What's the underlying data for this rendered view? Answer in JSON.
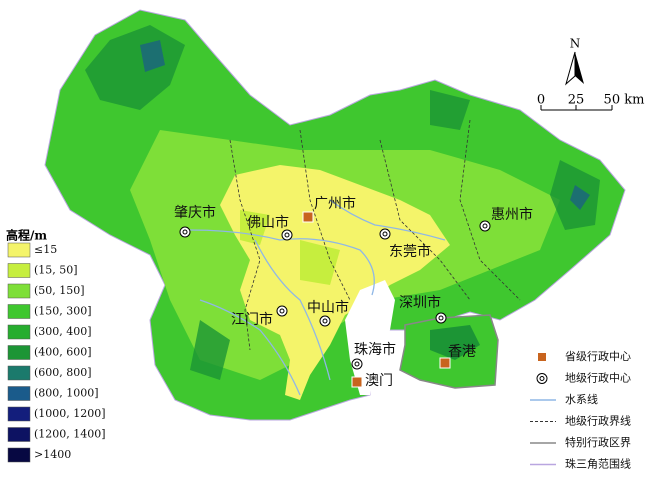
{
  "north_arrow": "N",
  "scale_bar": {
    "labels": [
      "0",
      "25",
      "50 km"
    ]
  },
  "cities": [
    {
      "label": "肇庆市",
      "level": "prefecture"
    },
    {
      "label": "佛山市",
      "level": "prefecture"
    },
    {
      "label": "广州市",
      "level": "province"
    },
    {
      "label": "惠州市",
      "level": "prefecture"
    },
    {
      "label": "东莞市",
      "level": "prefecture"
    },
    {
      "label": "江门市",
      "level": "prefecture"
    },
    {
      "label": "中山市",
      "level": "prefecture"
    },
    {
      "label": "深圳市",
      "level": "prefecture"
    },
    {
      "label": "珠海市",
      "level": "prefecture"
    },
    {
      "label": "香港",
      "level": "province"
    },
    {
      "label": "澳门",
      "level": "province"
    }
  ],
  "elevation_legend": {
    "title": "高程/m",
    "items": [
      {
        "label": "≤15",
        "color": "#f4f46a"
      },
      {
        "label": "(15, 50]",
        "color": "#c6ee3e"
      },
      {
        "label": "(50, 150]",
        "color": "#7edf38"
      },
      {
        "label": "(150, 300]",
        "color": "#3fc72f"
      },
      {
        "label": "(300, 400]",
        "color": "#26ad2e"
      },
      {
        "label": "(400, 600]",
        "color": "#1c9535"
      },
      {
        "label": "(600, 800]",
        "color": "#1b7a6c"
      },
      {
        "label": "(800, 1000]",
        "color": "#1a5b8b"
      },
      {
        "label": "(1000, 1200]",
        "color": "#131e7c"
      },
      {
        "label": "(1200, 1400]",
        "color": "#0d1262"
      },
      {
        "label": ">1400",
        "color": "#070842"
      }
    ]
  },
  "symbol_legend": {
    "items": [
      {
        "label": "省级行政中心"
      },
      {
        "label": "地级行政中心"
      },
      {
        "label": "水系线"
      },
      {
        "label": "地级行政界线"
      },
      {
        "label": "特别行政区界"
      },
      {
        "label": "珠三角范围线"
      }
    ]
  }
}
